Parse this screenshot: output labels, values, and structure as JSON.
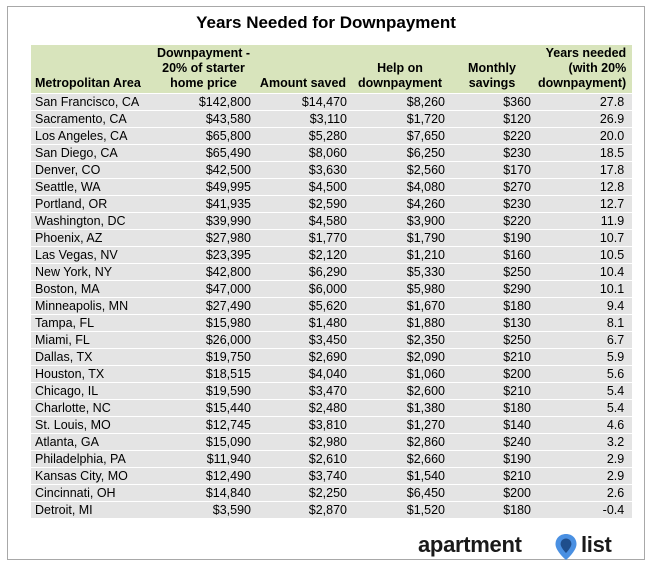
{
  "colors": {
    "header_bg": "#d8e4bc",
    "row_bg": "#e4e4e4",
    "border": "#a8a8a8",
    "logo_text": "#1a1a1a",
    "logo_pin_blue": "#4a90e2",
    "logo_pin_dark": "#1f4e8c"
  },
  "chart_data": {
    "type": "table",
    "title": "Years Needed for Downpayment",
    "columns": [
      "Metropolitan Area",
      "Downpayment - 20% of starter home price",
      "Amount saved",
      "Help on downpayment",
      "Monthly savings",
      "Years needed (with 20% downpayment)"
    ],
    "header_lines": [
      [
        "Metropolitan Area"
      ],
      [
        "Downpayment -",
        "20% of starter",
        "home price"
      ],
      [
        "Amount saved"
      ],
      [
        "Help on",
        "downpayment"
      ],
      [
        "Monthly",
        "savings"
      ],
      [
        "Years needed",
        "(with 20%",
        "downpayment)"
      ]
    ],
    "rows": [
      [
        "San Francisco, CA",
        "$142,800",
        "$14,470",
        "$8,260",
        "$360",
        "27.8"
      ],
      [
        "Sacramento, CA",
        "$43,580",
        "$3,110",
        "$1,720",
        "$120",
        "26.9"
      ],
      [
        "Los Angeles, CA",
        "$65,800",
        "$5,280",
        "$7,650",
        "$220",
        "20.0"
      ],
      [
        "San Diego, CA",
        "$65,490",
        "$8,060",
        "$6,250",
        "$230",
        "18.5"
      ],
      [
        "Denver, CO",
        "$42,500",
        "$3,630",
        "$2,560",
        "$170",
        "17.8"
      ],
      [
        "Seattle, WA",
        "$49,995",
        "$4,500",
        "$4,080",
        "$270",
        "12.8"
      ],
      [
        "Portland, OR",
        "$41,935",
        "$2,590",
        "$4,260",
        "$230",
        "12.7"
      ],
      [
        "Washington, DC",
        "$39,990",
        "$4,580",
        "$3,900",
        "$220",
        "11.9"
      ],
      [
        "Phoenix, AZ",
        "$27,980",
        "$1,770",
        "$1,790",
        "$190",
        "10.7"
      ],
      [
        "Las Vegas, NV",
        "$23,395",
        "$2,120",
        "$1,210",
        "$160",
        "10.5"
      ],
      [
        "New York, NY",
        "$42,800",
        "$6,290",
        "$5,330",
        "$250",
        "10.4"
      ],
      [
        "Boston, MA",
        "$47,000",
        "$6,000",
        "$5,980",
        "$290",
        "10.1"
      ],
      [
        "Minneapolis, MN",
        "$27,490",
        "$5,620",
        "$1,670",
        "$180",
        "9.4"
      ],
      [
        "Tampa, FL",
        "$15,980",
        "$1,480",
        "$1,880",
        "$130",
        "8.1"
      ],
      [
        "Miami, FL",
        "$26,000",
        "$3,450",
        "$2,350",
        "$250",
        "6.7"
      ],
      [
        "Dallas, TX",
        "$19,750",
        "$2,690",
        "$2,090",
        "$210",
        "5.9"
      ],
      [
        "Houston, TX",
        "$18,515",
        "$4,040",
        "$1,060",
        "$200",
        "5.6"
      ],
      [
        "Chicago, IL",
        "$19,590",
        "$3,470",
        "$2,600",
        "$210",
        "5.4"
      ],
      [
        "Charlotte, NC",
        "$15,440",
        "$2,480",
        "$1,380",
        "$180",
        "5.4"
      ],
      [
        "St. Louis, MO",
        "$12,745",
        "$3,810",
        "$1,270",
        "$140",
        "4.6"
      ],
      [
        "Atlanta, GA",
        "$15,090",
        "$2,980",
        "$2,860",
        "$240",
        "3.2"
      ],
      [
        "Philadelphia, PA",
        "$11,940",
        "$2,610",
        "$2,660",
        "$190",
        "2.9"
      ],
      [
        "Kansas City, MO",
        "$12,490",
        "$3,740",
        "$1,540",
        "$210",
        "2.9"
      ],
      [
        "Cincinnati, OH",
        "$14,840",
        "$2,250",
        "$6,450",
        "$200",
        "2.6"
      ],
      [
        "Detroit, MI",
        "$3,590",
        "$2,870",
        "$1,520",
        "$180",
        "-0.4"
      ]
    ]
  },
  "logo": {
    "word_left": "apartment",
    "word_right": "list",
    "icon": "map-pin-icon"
  }
}
